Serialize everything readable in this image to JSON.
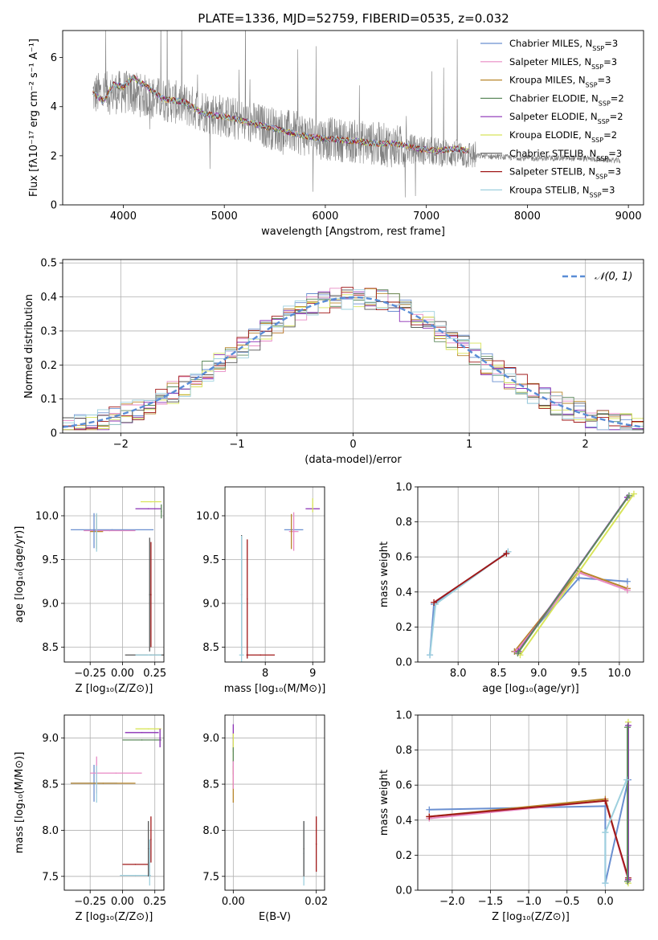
{
  "figure": {
    "title": "PLATE=1336, MJD=52759, FIBERID=0535, z=0.032"
  },
  "colors": {
    "grid": "#b0b0b0",
    "data_spectrum": "#808080",
    "normal": "#5a8dd6"
  },
  "legend_series": [
    {
      "label": "Chabrier MILES, N",
      "sub": "SSP",
      "tail": "=3",
      "color": "#6a8fd0"
    },
    {
      "label": "Salpeter MILES, N",
      "sub": "SSP",
      "tail": "=3",
      "color": "#e88ac4"
    },
    {
      "label": "Kroupa MILES, N",
      "sub": "SSP",
      "tail": "=3",
      "color": "#b8862b"
    },
    {
      "label": "Chabrier ELODIE, N",
      "sub": "SSP",
      "tail": "=2",
      "color": "#5e8a5e"
    },
    {
      "label": "Salpeter ELODIE, N",
      "sub": "SSP",
      "tail": "=2",
      "color": "#8a2fb5"
    },
    {
      "label": "Kroupa ELODIE, N",
      "sub": "SSP",
      "tail": "=2",
      "color": "#d8e45a"
    },
    {
      "label": "Chabrier STELIB, N",
      "sub": "SSP",
      "tail": "=3",
      "color": "#555555"
    },
    {
      "label": "Salpeter STELIB, N",
      "sub": "SSP",
      "tail": "=3",
      "color": "#a01818"
    },
    {
      "label": "Kroupa STELIB, N",
      "sub": "SSP",
      "tail": "=3",
      "color": "#9ed0de"
    }
  ],
  "chart_data": [
    {
      "id": "spectrum",
      "type": "line",
      "xlabel": "wavelength [Angstrom, rest frame]",
      "ylabel": "Flux [fλ10⁻¹⁷ erg cm⁻² s⁻¹ A⁻¹]",
      "xlim": [
        3400,
        9150
      ],
      "ylim": [
        0,
        7.1
      ],
      "xticks": [
        4000,
        5000,
        6000,
        7000,
        8000,
        9000
      ],
      "yticks": [
        0,
        2,
        4,
        6
      ],
      "grid": false,
      "legend": "top-right",
      "data_range": [
        3700,
        8920
      ],
      "model_range": [
        3700,
        7420
      ],
      "model_continuum": {
        "x": [
          3700,
          3800,
          3900,
          4000,
          4100,
          4200,
          4400,
          4600,
          4800,
          5000,
          5200,
          5500,
          5800,
          6000,
          6300,
          6500,
          6700,
          6900,
          7100,
          7300,
          7400
        ],
        "y": [
          4.6,
          4.2,
          4.9,
          4.8,
          5.2,
          4.9,
          4.3,
          4.2,
          3.7,
          3.6,
          3.4,
          3.1,
          2.8,
          2.7,
          2.6,
          2.5,
          2.5,
          2.3,
          2.2,
          2.3,
          2.2
        ]
      },
      "data_continuum": {
        "x": [
          3700,
          4000,
          4500,
          5000,
          5500,
          6000,
          6500,
          7000,
          7500,
          8000,
          8500,
          8920
        ],
        "y": [
          4.5,
          4.6,
          4.2,
          3.6,
          3.1,
          2.7,
          2.5,
          2.2,
          2.0,
          1.9,
          1.9,
          1.8
        ]
      }
    },
    {
      "id": "residuals",
      "type": "line",
      "xlabel": "(data-model)/error",
      "ylabel": "Normed distribution",
      "xlim": [
        -2.5,
        2.5
      ],
      "ylim": [
        0,
        0.51
      ],
      "xticks": [
        -2,
        -1,
        0,
        1,
        2
      ],
      "yticks": [
        0.0,
        0.1,
        0.2,
        0.3,
        0.4,
        0.5
      ],
      "grid": true,
      "legend": "top-right",
      "normal_label": "𝒩(0, 1)",
      "bin_width": 0.1
    },
    {
      "id": "age_vs_Z",
      "type": "scatter",
      "xlabel": "Z [log₁₀(Z/Z⊙)]",
      "ylabel": "age  [log₁₀(age/yr)]",
      "xlim": [
        -0.45,
        0.32
      ],
      "ylim": [
        8.33,
        10.33
      ],
      "xticks": [
        -0.25,
        0.0,
        0.25
      ],
      "xticklabels": [
        "−0.25",
        "0.00",
        "0.25"
      ],
      "yticks": [
        8.5,
        9.0,
        9.5,
        10.0
      ],
      "yticklabels": [
        "8.5",
        "9.0",
        "9.5",
        "10.0"
      ],
      "grid": true,
      "points": [
        {
          "s": 0,
          "x": -0.08,
          "y": 9.84,
          "xe": 0.32,
          "ye": 0.0
        },
        {
          "s": 1,
          "x": -0.1,
          "y": 9.83,
          "xe": 0.2,
          "ye": 0.0
        },
        {
          "s": 2,
          "x": -0.2,
          "y": 9.82,
          "xe": 0.05,
          "ye": 0.2
        },
        {
          "s": 0,
          "x": -0.22,
          "y": 9.83,
          "xe": 0.0,
          "ye": 0.2
        },
        {
          "s": 8,
          "x": -0.2,
          "y": 9.81,
          "xe": 0.0,
          "ye": 0.22
        },
        {
          "s": 4,
          "x": 0.2,
          "y": 10.08,
          "xe": 0.1,
          "ye": 0.0
        },
        {
          "s": 5,
          "x": 0.22,
          "y": 10.16,
          "xe": 0.08,
          "ye": 0.0
        },
        {
          "s": 3,
          "x": 0.3,
          "y": 10.05,
          "xe": 0.0,
          "ye": 0.08
        },
        {
          "s": 6,
          "x": 0.22,
          "y": 8.41,
          "xe": 0.2,
          "ye": 0.0
        },
        {
          "s": 7,
          "x": 0.22,
          "y": 9.1,
          "xe": 0.0,
          "ye": 0.6
        },
        {
          "s": 8,
          "x": 0.2,
          "y": 8.41,
          "xe": 0.1,
          "ye": 0.0
        },
        {
          "s": 6,
          "x": 0.21,
          "y": 9.1,
          "xe": 0.0,
          "ye": 0.65
        }
      ]
    },
    {
      "id": "age_vs_mass",
      "type": "scatter",
      "xlabel": "mass [log₁₀(M/M⊙)]",
      "ylabel": "",
      "xlim": [
        7.15,
        9.25
      ],
      "ylim": [
        8.33,
        10.33
      ],
      "xticks": [
        8,
        9
      ],
      "xticklabels": [
        "8",
        "9"
      ],
      "yticks": [
        8.5,
        9.0,
        9.5,
        10.0
      ],
      "yticklabels": [
        "8.5",
        "9.0",
        "9.5",
        "10.0"
      ],
      "grid": true,
      "points": [
        {
          "s": 0,
          "x": 8.6,
          "y": 9.84,
          "xe": 0.2,
          "ye": 0.0
        },
        {
          "s": 1,
          "x": 8.6,
          "y": 9.82,
          "xe": 0.1,
          "ye": 0.22
        },
        {
          "s": 2,
          "x": 8.55,
          "y": 9.82,
          "xe": 0.0,
          "ye": 0.2
        },
        {
          "s": 4,
          "x": 9.0,
          "y": 10.08,
          "xe": 0.15,
          "ye": 0.0
        },
        {
          "s": 5,
          "x": 9.0,
          "y": 10.12,
          "xe": 0.0,
          "ye": 0.08
        },
        {
          "s": 6,
          "x": 7.5,
          "y": 9.1,
          "xe": 0.0,
          "ye": 0.68
        },
        {
          "s": 7,
          "x": 7.62,
          "y": 9.05,
          "xe": 0.0,
          "ye": 0.68
        },
        {
          "s": 7,
          "x": 7.9,
          "y": 8.41,
          "xe": 0.3,
          "ye": 0.0
        },
        {
          "s": 8,
          "x": 7.5,
          "y": 8.41,
          "xe": 0.05,
          "ye": 0.0
        },
        {
          "s": 8,
          "x": 7.5,
          "y": 9.05,
          "xe": 0.0,
          "ye": 0.72
        }
      ]
    },
    {
      "id": "mass_weight_vs_age",
      "type": "line",
      "xlabel": "age  [log₁₀(age/yr)]",
      "ylabel": "mass weight",
      "xlim": [
        7.5,
        10.3
      ],
      "ylim": [
        0,
        1
      ],
      "xticks": [
        8.0,
        8.5,
        9.0,
        9.5,
        10.0
      ],
      "xticklabels": [
        "8.0",
        "8.5",
        "9.0",
        "9.5",
        "10.0"
      ],
      "yticks": [
        0.0,
        0.2,
        0.4,
        0.6,
        0.8,
        1.0
      ],
      "yticklabels": [
        "0.0",
        "0.2",
        "0.4",
        "0.6",
        "0.8",
        "1.0"
      ],
      "grid": true,
      "series": [
        {
          "s": 0,
          "x": [
            8.62,
            7.7,
            7.65
          ],
          "y": [
            0.63,
            0.33,
            0.04
          ]
        },
        {
          "s": 8,
          "x": [
            8.62,
            7.72,
            7.65
          ],
          "y": [
            0.63,
            0.33,
            0.04
          ]
        },
        {
          "s": 7,
          "x": [
            8.6,
            7.7
          ],
          "y": [
            0.62,
            0.34
          ]
        },
        {
          "s": 0,
          "x": [
            8.7,
            9.5,
            10.1
          ],
          "y": [
            0.06,
            0.48,
            0.46
          ]
        },
        {
          "s": 2,
          "x": [
            8.7,
            9.5,
            10.1
          ],
          "y": [
            0.06,
            0.52,
            0.42
          ]
        },
        {
          "s": 1,
          "x": [
            8.72,
            9.5,
            10.1
          ],
          "y": [
            0.06,
            0.51,
            0.41
          ]
        },
        {
          "s": 4,
          "x": [
            8.75,
            10.1
          ],
          "y": [
            0.06,
            0.94
          ]
        },
        {
          "s": 5,
          "x": [
            8.77,
            10.18
          ],
          "y": [
            0.04,
            0.96
          ]
        },
        {
          "s": 3,
          "x": [
            8.74,
            10.12
          ],
          "y": [
            0.05,
            0.95
          ]
        }
      ]
    },
    {
      "id": "mass_vs_Z",
      "type": "scatter",
      "xlabel": "Z [log₁₀(Z/Z⊙)]",
      "ylabel": "mass [log₁₀(M/M⊙)]",
      "xlim": [
        -0.45,
        0.32
      ],
      "ylim": [
        7.35,
        9.25
      ],
      "xticks": [
        -0.25,
        0.0,
        0.25
      ],
      "xticklabels": [
        "−0.25",
        "0.00",
        "0.25"
      ],
      "yticks": [
        7.5,
        8.0,
        8.5,
        9.0
      ],
      "yticklabels": [
        "7.5",
        "8.0",
        "8.5",
        "9.0"
      ],
      "grid": true,
      "points": [
        {
          "s": 0,
          "x": -0.22,
          "y": 8.51,
          "xe": 0.18,
          "ye": 0.2
        },
        {
          "s": 1,
          "x": -0.05,
          "y": 8.62,
          "xe": 0.2,
          "ye": 0.0
        },
        {
          "s": 1,
          "x": -0.2,
          "y": 8.6,
          "xe": 0.0,
          "ye": 0.2
        },
        {
          "s": 2,
          "x": -0.15,
          "y": 8.51,
          "xe": 0.25,
          "ye": 0.0
        },
        {
          "s": 8,
          "x": -0.2,
          "y": 8.5,
          "xe": 0.0,
          "ye": 0.2
        },
        {
          "s": 4,
          "x": 0.15,
          "y": 9.06,
          "xe": 0.13,
          "ye": 0.0
        },
        {
          "s": 5,
          "x": 0.2,
          "y": 9.1,
          "xe": 0.1,
          "ye": 0.0
        },
        {
          "s": 3,
          "x": 0.15,
          "y": 8.98,
          "xe": 0.15,
          "ye": 0.0
        },
        {
          "s": 4,
          "x": 0.29,
          "y": 9.0,
          "xe": 0.0,
          "ye": 0.1
        },
        {
          "s": 7,
          "x": 0.1,
          "y": 7.63,
          "xe": 0.1,
          "ye": 0.0
        },
        {
          "s": 7,
          "x": 0.22,
          "y": 7.9,
          "xe": 0.0,
          "ye": 0.25
        },
        {
          "s": 8,
          "x": 0.1,
          "y": 7.51,
          "xe": 0.12,
          "ye": 0.0
        },
        {
          "s": 8,
          "x": 0.21,
          "y": 7.65,
          "xe": 0.0,
          "ye": 0.25
        },
        {
          "s": 6,
          "x": 0.2,
          "y": 7.8,
          "xe": 0.0,
          "ye": 0.3
        }
      ]
    },
    {
      "id": "mass_vs_ebv",
      "type": "scatter",
      "xlabel": "E(B-V)",
      "ylabel": "",
      "xlim": [
        -0.002,
        0.022
      ],
      "ylim": [
        7.35,
        9.25
      ],
      "xticks": [
        0.0,
        0.02
      ],
      "xticklabels": [
        "0.00",
        "0.02"
      ],
      "yticks": [
        7.5,
        8.0,
        8.5,
        9.0
      ],
      "yticklabels": [
        "7.5",
        "8.0",
        "8.5",
        "9.0"
      ],
      "grid": true,
      "points": [
        {
          "s": 4,
          "x": 0.0,
          "y": 9.0,
          "xe": 0.0,
          "ye": 0.15
        },
        {
          "s": 5,
          "x": 0.0,
          "y": 8.9,
          "xe": 0.0,
          "ye": 0.15
        },
        {
          "s": 3,
          "x": 0.0,
          "y": 8.75,
          "xe": 0.0,
          "ye": 0.15
        },
        {
          "s": 2,
          "x": 0.0,
          "y": 8.5,
          "xe": 0.0,
          "ye": 0.2
        },
        {
          "s": 1,
          "x": 0.0,
          "y": 8.6,
          "xe": 0.0,
          "ye": 0.15
        },
        {
          "s": 8,
          "x": 0.017,
          "y": 7.75,
          "xe": 0.0,
          "ye": 0.35
        },
        {
          "s": 6,
          "x": 0.017,
          "y": 7.8,
          "xe": 0.0,
          "ye": 0.3
        },
        {
          "s": 7,
          "x": 0.02,
          "y": 7.85,
          "xe": 0.0,
          "ye": 0.3
        }
      ]
    },
    {
      "id": "mass_weight_vs_Z",
      "type": "line",
      "xlabel": "Z [log₁₀(Z/Z⊙)]",
      "ylabel": "mass weight",
      "xlim": [
        -2.45,
        0.5
      ],
      "ylim": [
        0,
        1
      ],
      "xticks": [
        -2.0,
        -1.5,
        -1.0,
        -0.5,
        0.0
      ],
      "xticklabels": [
        "−2.0",
        "−1.5",
        "−1.0",
        "−0.5",
        "0.0"
      ],
      "yticks": [
        0.0,
        0.2,
        0.4,
        0.6,
        0.8,
        1.0
      ],
      "yticklabels": [
        "0.0",
        "0.2",
        "0.4",
        "0.6",
        "0.8",
        "1.0"
      ],
      "grid": true,
      "series": [
        {
          "s": 0,
          "x": [
            -2.3,
            0.0,
            0.0,
            0.3
          ],
          "y": [
            0.46,
            0.48,
            0.04,
            0.63
          ]
        },
        {
          "s": 2,
          "x": [
            -2.3,
            0.0,
            0.3
          ],
          "y": [
            0.42,
            0.52,
            0.06
          ]
        },
        {
          "s": 1,
          "x": [
            -2.3,
            0.0,
            0.3
          ],
          "y": [
            0.41,
            0.51,
            0.06
          ]
        },
        {
          "s": 7,
          "x": [
            -2.3,
            0.0,
            0.3
          ],
          "y": [
            0.42,
            0.51,
            0.07
          ]
        },
        {
          "s": 5,
          "x": [
            0.3,
            0.3
          ],
          "y": [
            0.04,
            0.96
          ]
        },
        {
          "s": 4,
          "x": [
            0.3,
            0.3
          ],
          "y": [
            0.06,
            0.94
          ]
        },
        {
          "s": 3,
          "x": [
            0.29,
            0.29
          ],
          "y": [
            0.05,
            0.93
          ]
        },
        {
          "s": 8,
          "x": [
            0.0,
            0.28
          ],
          "y": [
            0.33,
            0.63
          ]
        },
        {
          "s": 8,
          "x": [
            0.0,
            0.0
          ],
          "y": [
            0.04,
            0.33
          ]
        }
      ]
    }
  ]
}
